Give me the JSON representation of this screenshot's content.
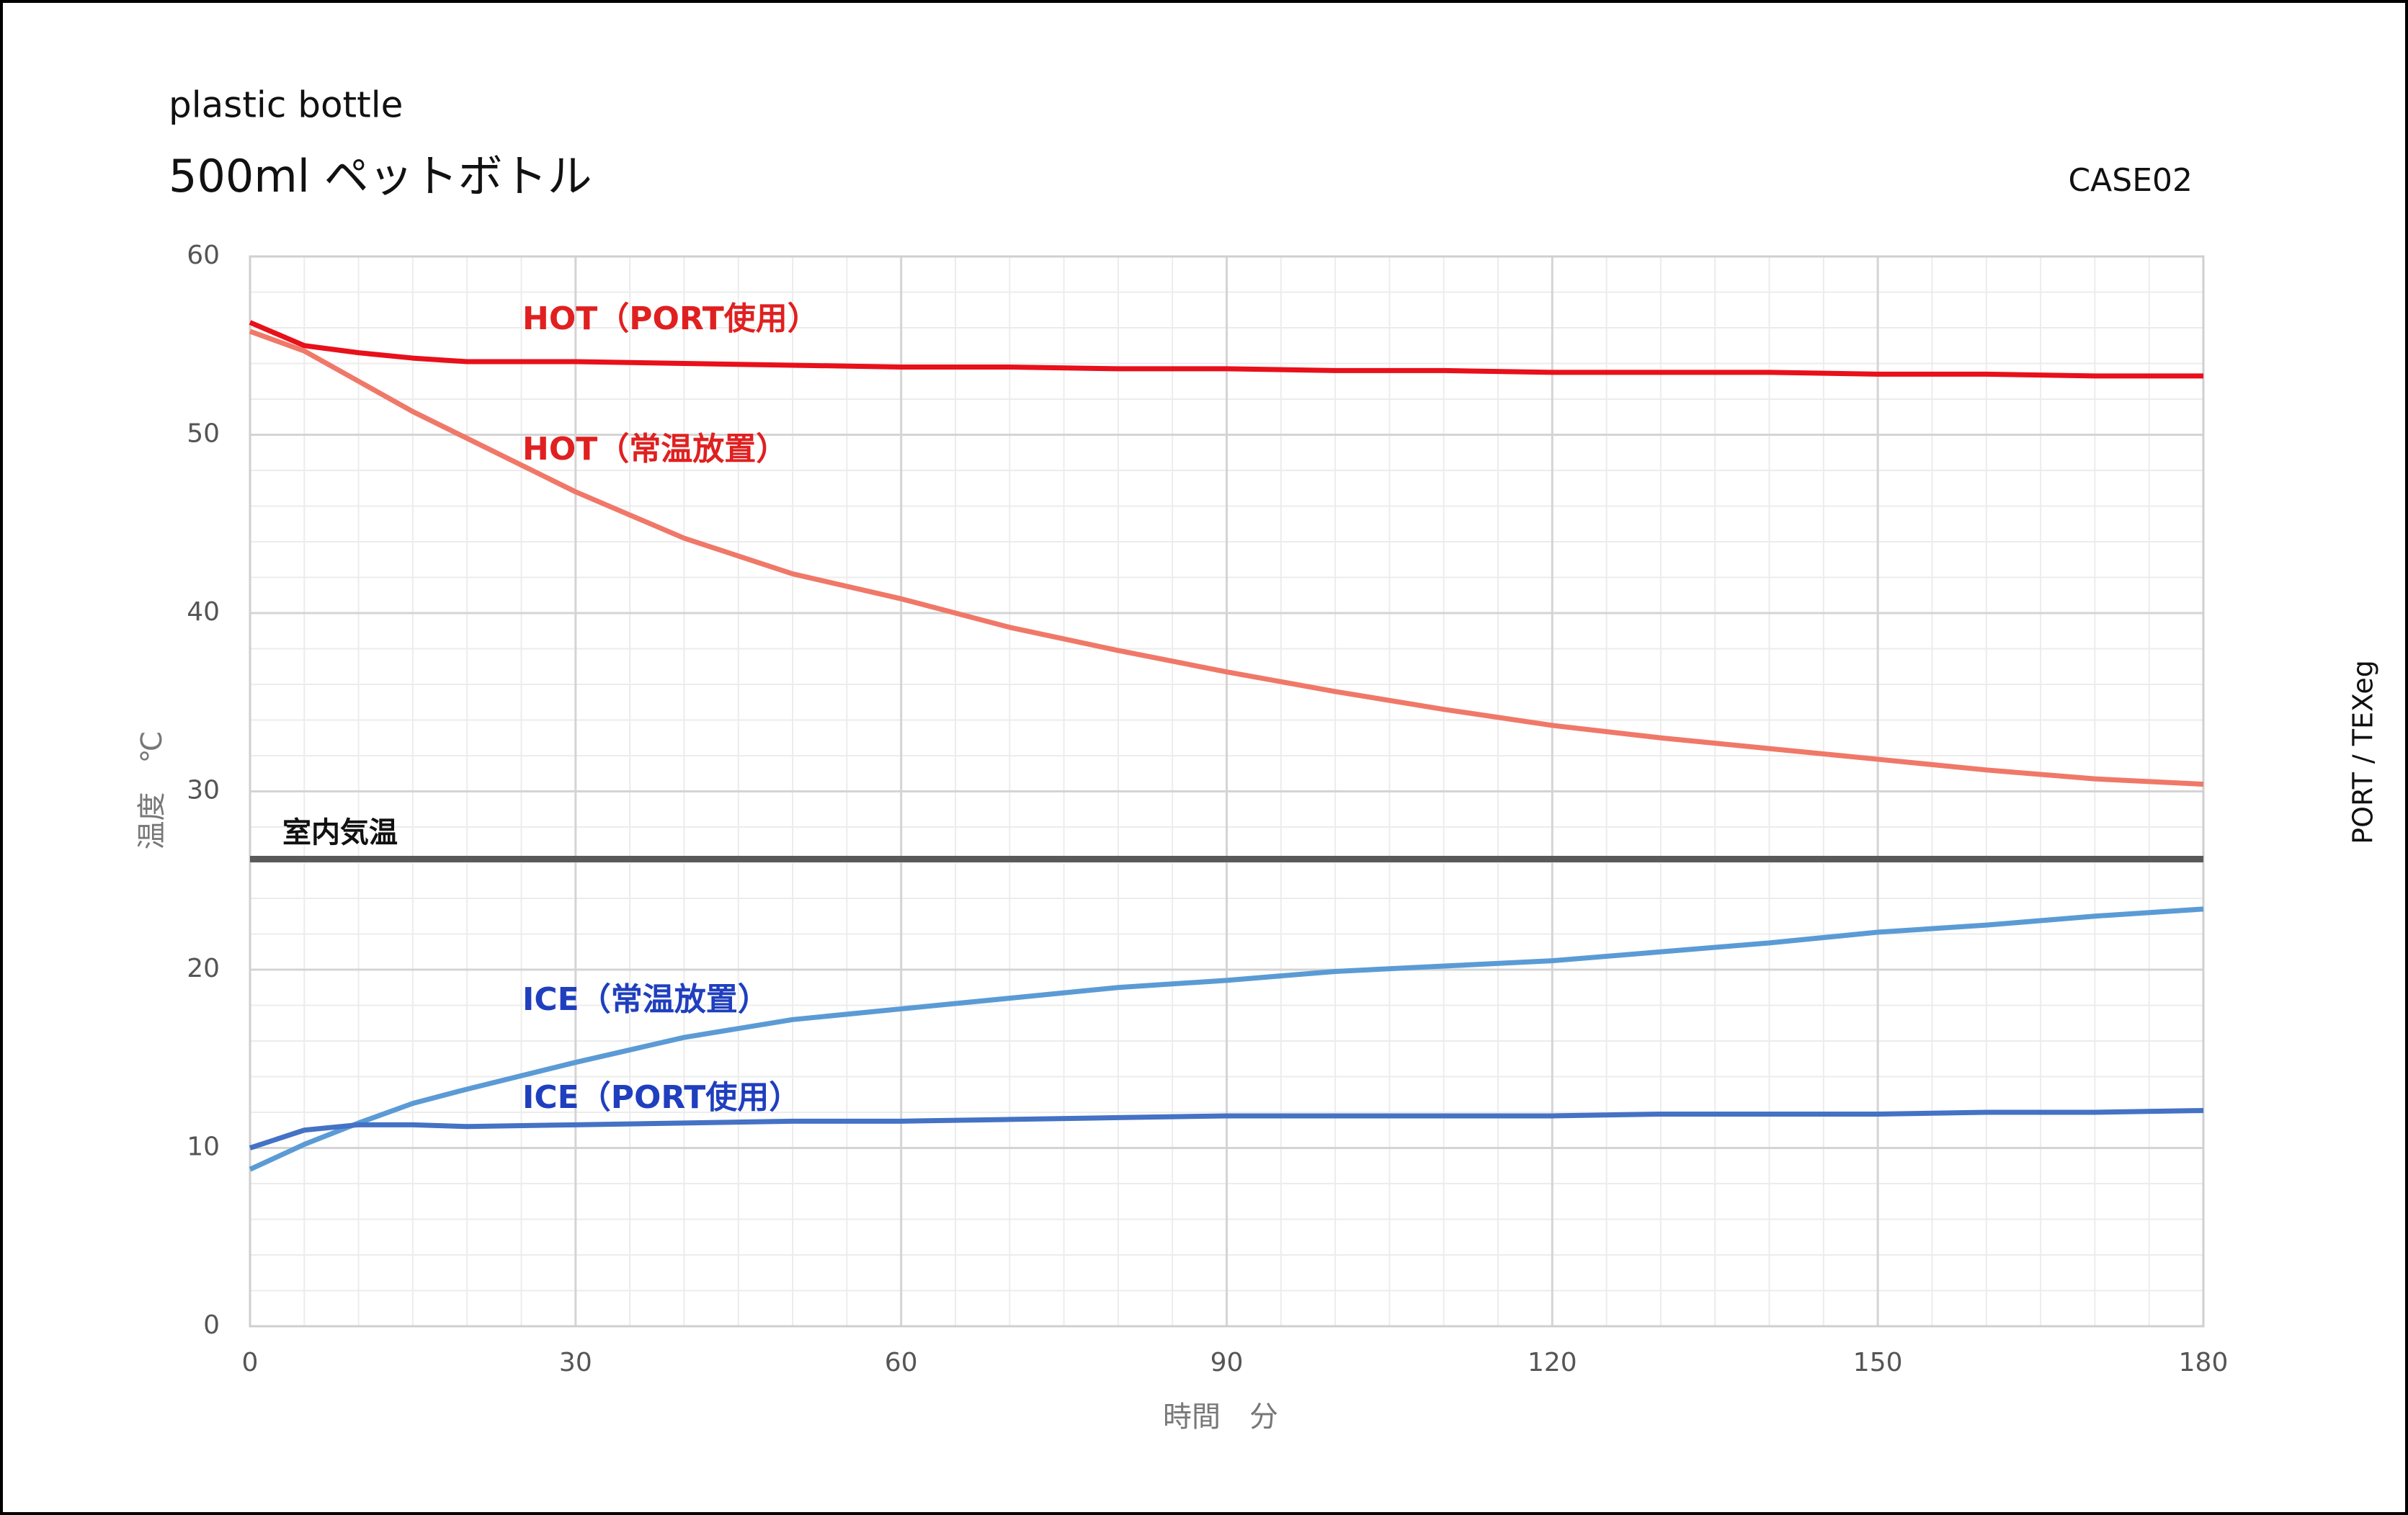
{
  "chart_data": {
    "type": "line",
    "subtitle": "plastic bottle",
    "title": "500ml ペットボトル",
    "case_label": "CASE02",
    "side_label": "PORT / TEXeg",
    "xlabel": "時間　分",
    "ylabel": "温度　℃",
    "x": [
      0,
      5,
      10,
      15,
      20,
      30,
      40,
      50,
      60,
      70,
      80,
      90,
      100,
      110,
      120,
      130,
      140,
      150,
      160,
      170,
      180
    ],
    "series": [
      {
        "name": "HOT（PORT使用）",
        "color": "#e8101a",
        "label_color": "#e02020",
        "values": [
          56.3,
          55.0,
          54.6,
          54.3,
          54.1,
          54.1,
          54.0,
          53.9,
          53.8,
          53.8,
          53.7,
          53.7,
          53.6,
          53.6,
          53.5,
          53.5,
          53.5,
          53.4,
          53.4,
          53.3,
          53.3
        ]
      },
      {
        "name": "HOT（常温放置）",
        "color": "#f07868",
        "label_color": "#e02020",
        "values": [
          55.8,
          54.7,
          53.0,
          51.3,
          49.8,
          46.8,
          44.2,
          42.2,
          40.8,
          39.2,
          37.9,
          36.7,
          35.6,
          34.6,
          33.7,
          33.0,
          32.4,
          31.8,
          31.2,
          30.7,
          30.4
        ]
      },
      {
        "name": "室内気温",
        "color": "#595959",
        "label_color": "#111111",
        "values": [
          26.2,
          26.2,
          26.2,
          26.2,
          26.2,
          26.2,
          26.2,
          26.2,
          26.2,
          26.2,
          26.2,
          26.2,
          26.2,
          26.2,
          26.2,
          26.2,
          26.2,
          26.2,
          26.2,
          26.2,
          26.2
        ]
      },
      {
        "name": "ICE（常温放置）",
        "color": "#5b9bd5",
        "label_color": "#1f3fbf",
        "values": [
          8.8,
          10.2,
          11.4,
          12.5,
          13.3,
          14.8,
          16.2,
          17.2,
          17.8,
          18.4,
          19.0,
          19.4,
          19.9,
          20.2,
          20.5,
          21.0,
          21.5,
          22.1,
          22.5,
          23.0,
          23.4
        ]
      },
      {
        "name": "ICE（PORT使用）",
        "color": "#4472c4",
        "label_color": "#1f3fbf",
        "values": [
          10.0,
          11.0,
          11.3,
          11.3,
          11.2,
          11.3,
          11.4,
          11.5,
          11.5,
          11.6,
          11.7,
          11.8,
          11.8,
          11.8,
          11.8,
          11.9,
          11.9,
          11.9,
          12.0,
          12.0,
          12.1
        ]
      }
    ],
    "xlim": [
      0,
      180
    ],
    "xticks": [
      0,
      30,
      60,
      90,
      120,
      150,
      180
    ],
    "ylim": [
      0,
      60
    ],
    "yticks": [
      0,
      10,
      20,
      30,
      40,
      50,
      60
    ],
    "x_minor_ticks": [
      5,
      10,
      15,
      20,
      25,
      35,
      40,
      45,
      50,
      55,
      65,
      70,
      75,
      80,
      85,
      95,
      100,
      105,
      110,
      115,
      125,
      130,
      135,
      140,
      145,
      155,
      160,
      165,
      170,
      175
    ],
    "y_minor_ticks": [
      2,
      4,
      6,
      8,
      12,
      14,
      16,
      18,
      22,
      24,
      26,
      28,
      32,
      34,
      36,
      38,
      42,
      44,
      46,
      48,
      52,
      54,
      56,
      58
    ],
    "grid": true
  }
}
